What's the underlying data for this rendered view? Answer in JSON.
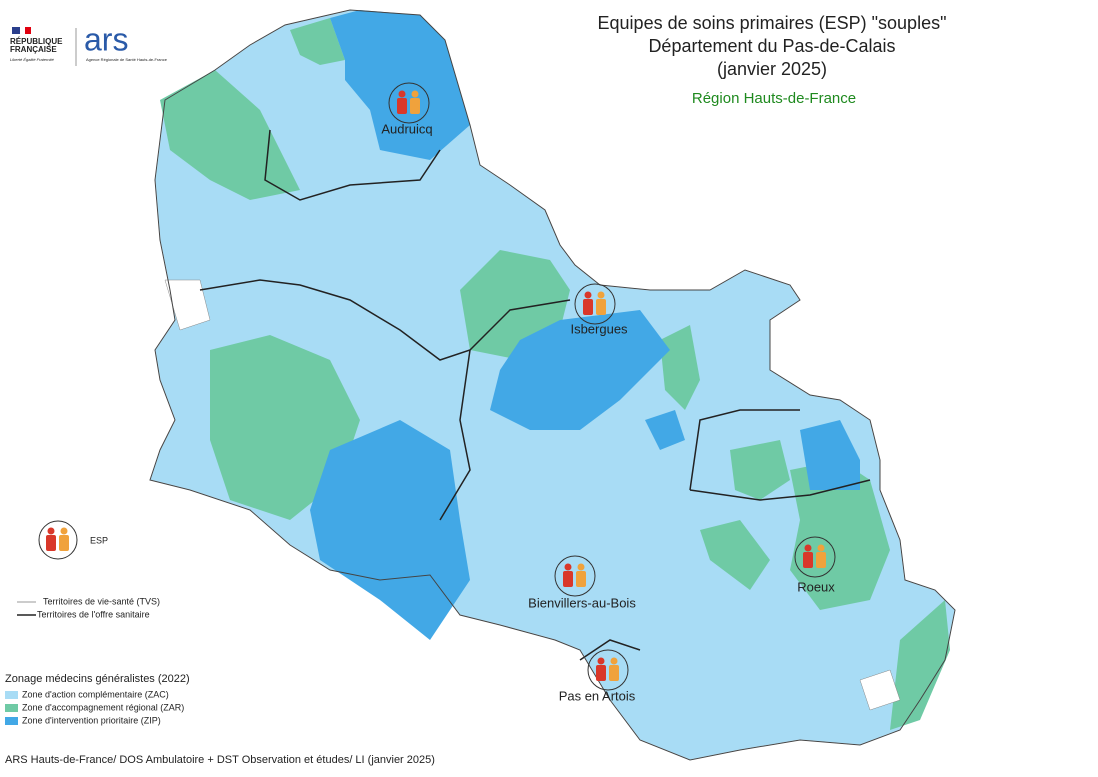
{
  "header": {
    "republique": "RÉPUBLIQUE",
    "francaise": "FRANÇAISE",
    "devise": "Liberté Égalité Fraternité",
    "ars": "ars",
    "ars_sub": "Agence Régionale de Santé Hauts-de-France"
  },
  "title": {
    "lines": [
      "Equipes de soins primaires (ESP) \"souples\"",
      "Département du Pas-de-Calais",
      "(janvier 2025)"
    ],
    "subtitle": "Région Hauts-de-France"
  },
  "markers": [
    {
      "label": "Audruicq"
    },
    {
      "label": "Isbergues"
    },
    {
      "label": "Bienvillers-au-Bois"
    },
    {
      "label": "Roeux"
    },
    {
      "label": "Pas en Artois"
    }
  ],
  "legend": {
    "esp": "ESP",
    "lines": [
      "Territoires de vie-santé (TVS)",
      "Territoires de l'offre sanitaire"
    ],
    "zoning_title": "Zonage médecins généralistes (2022)",
    "zones": [
      {
        "label": "Zone d'action complémentaire (ZAC)",
        "color": "#a8dcf5"
      },
      {
        "label": "Zone d'accompagnement régional (ZAR)",
        "color": "#6fcaa5"
      },
      {
        "label": "Zone d'intervention prioritaire (ZIP)",
        "color": "#42a8e6"
      }
    ]
  },
  "footer": "ARS Hauts-de-France/ DOS Ambulatoire + DST Observation et études/ LI (janvier 2025)"
}
